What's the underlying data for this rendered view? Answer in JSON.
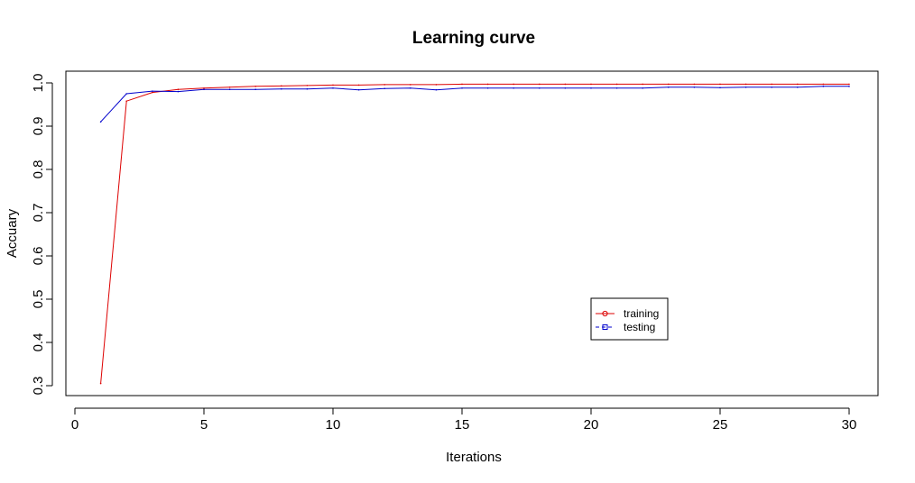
{
  "chart_data": {
    "type": "line",
    "title": "Learning curve",
    "xlabel": "Iterations",
    "ylabel": "Accuary",
    "xlim": [
      0,
      31
    ],
    "ylim": [
      0.3,
      1.0
    ],
    "x_ticks": [
      0,
      5,
      10,
      15,
      20,
      25,
      30
    ],
    "y_ticks": [
      0.3,
      0.4,
      0.5,
      0.6,
      0.7,
      0.8,
      0.9,
      1.0
    ],
    "y_tick_labels": [
      "0.3",
      "0.4",
      "0.5",
      "0.6",
      "0.7",
      "0.8",
      "0.9",
      "1.0"
    ],
    "x": [
      1,
      2,
      3,
      4,
      5,
      6,
      7,
      8,
      9,
      10,
      11,
      12,
      13,
      14,
      15,
      16,
      17,
      18,
      19,
      20,
      21,
      22,
      23,
      24,
      25,
      26,
      27,
      28,
      29,
      30
    ],
    "series": [
      {
        "name": "training",
        "color": "#dd0000",
        "marker": "circle",
        "values": [
          0.305,
          0.958,
          0.978,
          0.985,
          0.988,
          0.99,
          0.992,
          0.993,
          0.994,
          0.995,
          0.995,
          0.996,
          0.996,
          0.996,
          0.997,
          0.997,
          0.997,
          0.997,
          0.997,
          0.997,
          0.997,
          0.997,
          0.997,
          0.997,
          0.997,
          0.997,
          0.997,
          0.997,
          0.997,
          0.997
        ]
      },
      {
        "name": "testing",
        "color": "#0000cc",
        "marker": "square",
        "values": [
          0.91,
          0.975,
          0.981,
          0.98,
          0.985,
          0.985,
          0.985,
          0.986,
          0.986,
          0.988,
          0.984,
          0.987,
          0.988,
          0.984,
          0.988,
          0.988,
          0.988,
          0.988,
          0.988,
          0.988,
          0.988,
          0.988,
          0.99,
          0.99,
          0.989,
          0.99,
          0.99,
          0.99,
          0.992,
          0.992
        ]
      }
    ],
    "grid": false,
    "legend_position": "lower-right"
  }
}
